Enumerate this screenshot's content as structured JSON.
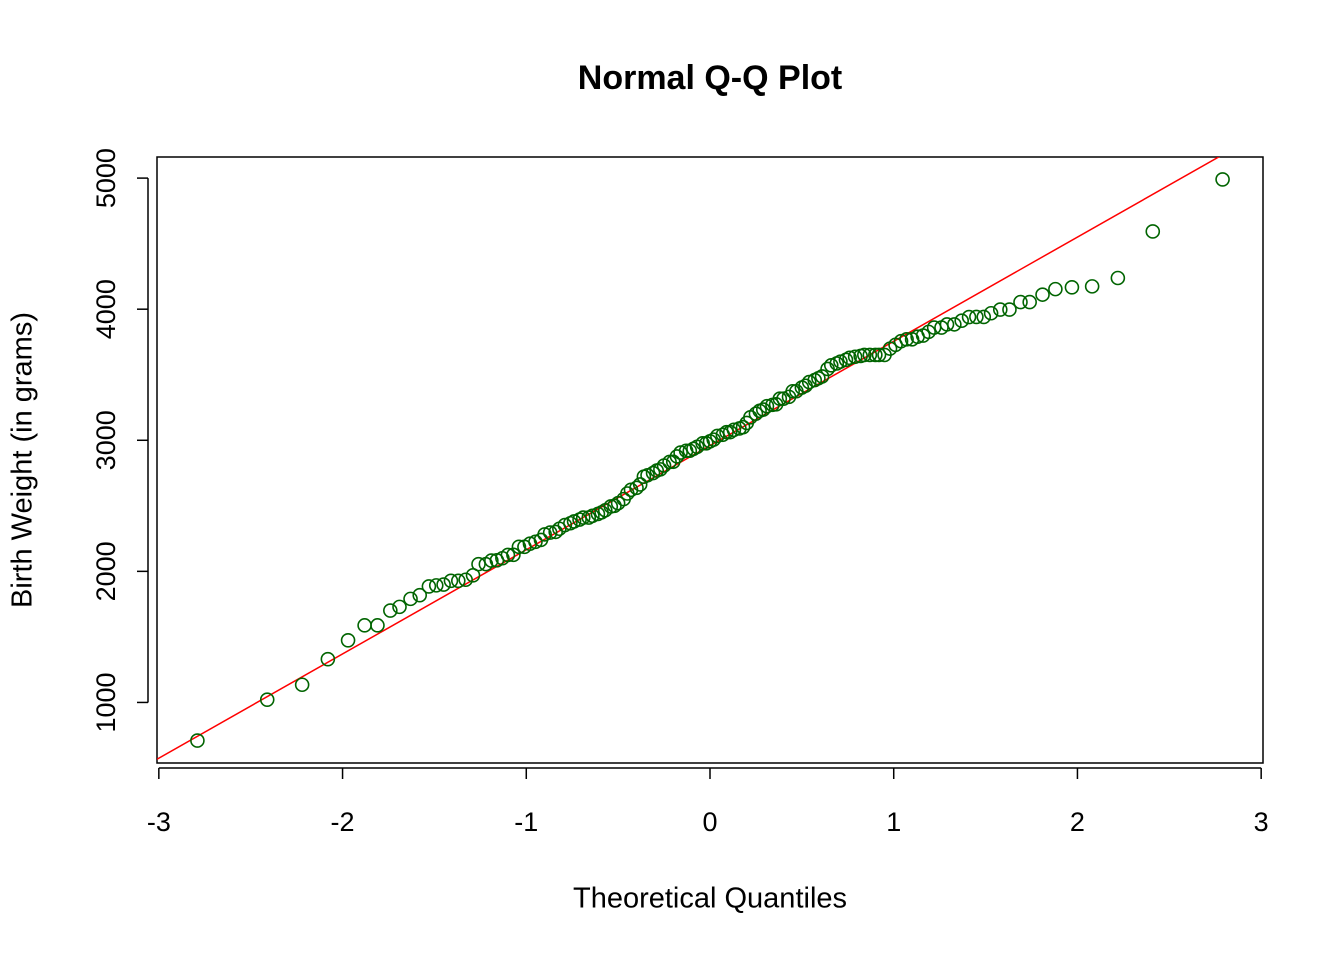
{
  "chart_data": {
    "type": "scatter",
    "title": "Normal Q-Q Plot",
    "x_label": "Theoretical Quantiles",
    "y_label": "Birth Weight (in grams)",
    "xlim": [
      -3.01,
      3.01
    ],
    "ylim": [
      538,
      5161
    ],
    "xticks": [
      -3,
      -2,
      -1,
      0,
      1,
      2,
      3
    ],
    "yticks": [
      1000,
      2000,
      3000,
      4000,
      5000
    ],
    "color": "#006400",
    "reference_line": {
      "intercept": 2960,
      "slope": 795,
      "color": "#ff0000"
    },
    "x": [
      -2.79,
      -2.41,
      -2.22,
      -2.08,
      -1.97,
      -1.88,
      -1.81,
      -1.74,
      -1.69,
      -1.63,
      -1.58,
      -1.53,
      -1.49,
      -1.45,
      -1.41,
      -1.37,
      -1.33,
      -1.29,
      -1.26,
      -1.22,
      -1.19,
      -1.16,
      -1.13,
      -1.1,
      -1.07,
      -1.04,
      -1.01,
      -0.98,
      -0.95,
      -0.92,
      -0.9,
      -0.87,
      -0.84,
      -0.82,
      -0.79,
      -0.76,
      -0.74,
      -0.71,
      -0.69,
      -0.66,
      -0.64,
      -0.61,
      -0.59,
      -0.57,
      -0.54,
      -0.52,
      -0.5,
      -0.47,
      -0.45,
      -0.43,
      -0.4,
      -0.38,
      -0.36,
      -0.34,
      -0.31,
      -0.29,
      -0.27,
      -0.25,
      -0.22,
      -0.2,
      -0.18,
      -0.16,
      -0.13,
      -0.11,
      -0.09,
      -0.07,
      -0.04,
      -0.02,
      0.0,
      0.02,
      0.04,
      0.07,
      0.09,
      0.11,
      0.13,
      0.16,
      0.18,
      0.2,
      0.22,
      0.25,
      0.27,
      0.29,
      0.31,
      0.34,
      0.36,
      0.38,
      0.4,
      0.43,
      0.45,
      0.47,
      0.5,
      0.52,
      0.54,
      0.57,
      0.59,
      0.61,
      0.64,
      0.66,
      0.69,
      0.71,
      0.74,
      0.76,
      0.79,
      0.82,
      0.84,
      0.87,
      0.9,
      0.92,
      0.95,
      0.98,
      1.01,
      1.04,
      1.07,
      1.1,
      1.13,
      1.16,
      1.19,
      1.22,
      1.26,
      1.29,
      1.33,
      1.37,
      1.41,
      1.45,
      1.49,
      1.53,
      1.58,
      1.63,
      1.69,
      1.74,
      1.81,
      1.88,
      1.97,
      2.08,
      2.22,
      2.41,
      2.79
    ],
    "values": [
      709,
      1021,
      1135,
      1330,
      1474,
      1588,
      1588,
      1701,
      1729,
      1790,
      1818,
      1885,
      1893,
      1899,
      1928,
      1928,
      1936,
      1970,
      2055,
      2055,
      2082,
      2084,
      2100,
      2125,
      2126,
      2187,
      2187,
      2211,
      2225,
      2240,
      2282,
      2296,
      2301,
      2325,
      2353,
      2367,
      2381,
      2395,
      2410,
      2410,
      2424,
      2438,
      2450,
      2466,
      2495,
      2500,
      2520,
      2551,
      2594,
      2622,
      2637,
      2663,
      2722,
      2733,
      2750,
      2769,
      2778,
      2807,
      2835,
      2836,
      2877,
      2906,
      2920,
      2920,
      2935,
      2950,
      2977,
      2977,
      2992,
      3005,
      3033,
      3042,
      3062,
      3062,
      3080,
      3090,
      3100,
      3132,
      3175,
      3203,
      3225,
      3234,
      3260,
      3270,
      3274,
      3317,
      3317,
      3331,
      3374,
      3374,
      3402,
      3416,
      3444,
      3459,
      3473,
      3487,
      3544,
      3572,
      3586,
      3600,
      3614,
      3629,
      3637,
      3643,
      3651,
      3651,
      3651,
      3651,
      3651,
      3699,
      3728,
      3756,
      3770,
      3770,
      3790,
      3799,
      3827,
      3860,
      3860,
      3884,
      3884,
      3912,
      3940,
      3941,
      3941,
      3969,
      3997,
      3997,
      4054,
      4054,
      4111,
      4153,
      4167,
      4174,
      4238,
      4593,
      4990
    ]
  }
}
